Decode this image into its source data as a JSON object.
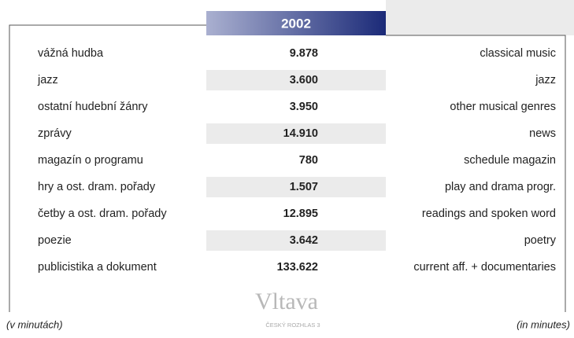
{
  "header": {
    "year": "2002"
  },
  "table": {
    "rows": [
      [
        "vážná hudba",
        "9.878",
        "classical music"
      ],
      [
        "jazz",
        "3.600",
        "jazz"
      ],
      [
        "ostatní hudební žánry",
        "3.950",
        "other musical genres"
      ],
      [
        "zprávy",
        "14.910",
        "news"
      ],
      [
        "magazín o programu",
        "780",
        "schedule magazin"
      ],
      [
        "hry a ost. dram. pořady",
        "1.507",
        "play and drama progr."
      ],
      [
        "četby a ost. dram. pořady",
        "12.895",
        "readings and spoken word"
      ],
      [
        "poezie",
        "3.642",
        "poetry"
      ],
      [
        "publicistika a dokument",
        "133.622",
        "current aff. + documentaries"
      ]
    ]
  },
  "footer": {
    "left": "(v minutách)",
    "right": "(in minutes)"
  },
  "logo": {
    "name": "Vltava",
    "subtitle": "ČESKÝ ROZHLAS 3"
  }
}
